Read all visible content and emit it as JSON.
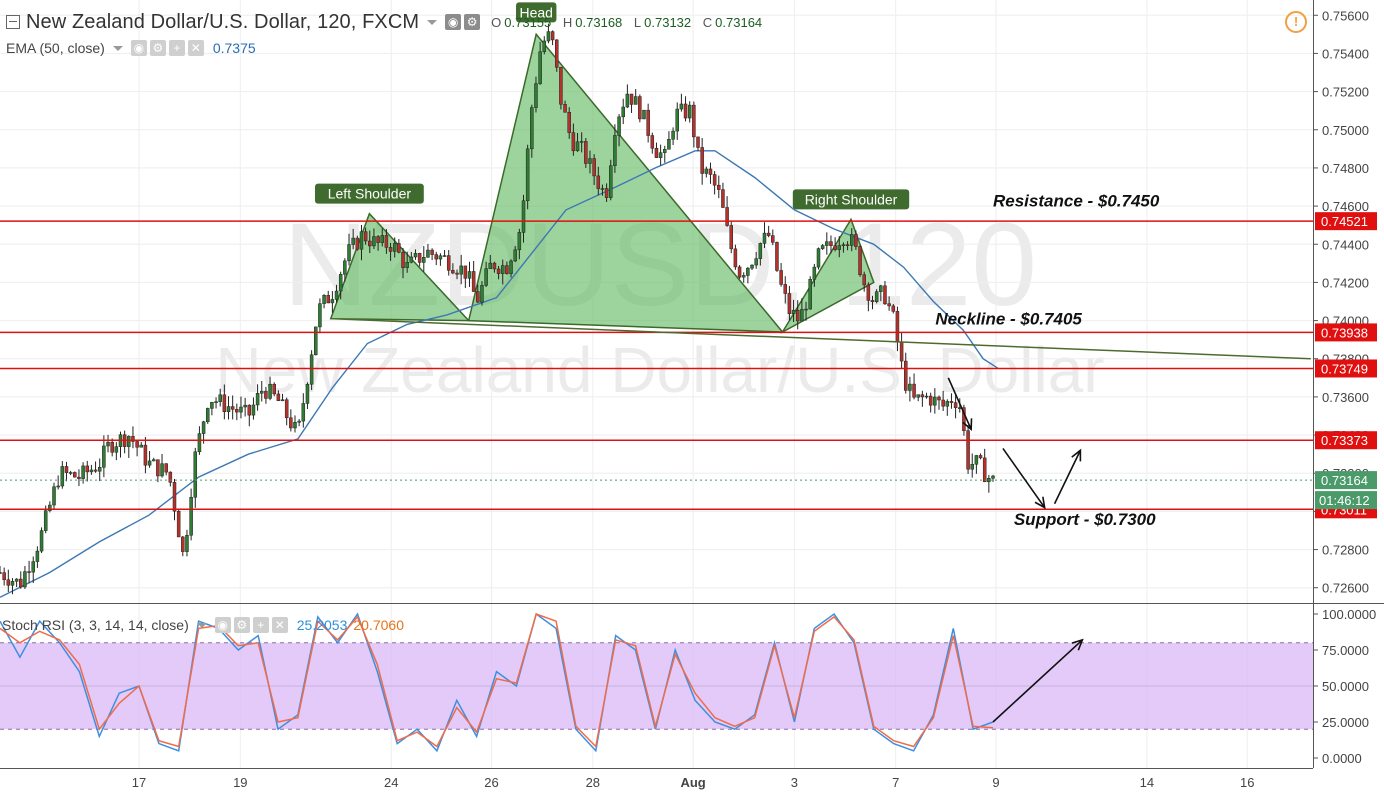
{
  "header": {
    "symbol_title": "New Zealand Dollar/U.S. Dollar, 120, FXCM",
    "ohlc": {
      "o_label": "O",
      "o_value": "0.73155",
      "h_label": "H",
      "h_value": "0.73168",
      "l_label": "L",
      "l_value": "0.73132",
      "c_label": "C",
      "c_value": "0.73164"
    },
    "ema_label": "EMA (50, close)",
    "ema_value": "0.7375",
    "alert_icon": "alert-icon"
  },
  "watermark": {
    "symbol": "NZDUSD, 120",
    "name": "New Zealand Dollar/U.S. Dollar"
  },
  "stoch": {
    "label": "Stoch RSI (3, 3, 14, 14, close)",
    "k_value": "25.2053",
    "d_value": "20.7060"
  },
  "colors": {
    "up_candle": "#2e7d32",
    "down_candle": "#b5322c",
    "ema": "#3c78b4",
    "pattern_fill": "#5cb85c",
    "pattern_stroke": "#3a6a2a",
    "level_line": "#e01010",
    "neckline": "#4d6b2e",
    "stoch_k": "#3d8fe0",
    "stoch_d": "#ef6c4a",
    "stoch_band": "#d9b8f5",
    "last_price": "#4a9a6a"
  },
  "chart_data": [
    {
      "type": "candlestick",
      "ylim": [
        0.7252,
        0.7568
      ],
      "y_ticks": [
        "0.75600",
        "0.75400",
        "0.75200",
        "0.75000",
        "0.74800",
        "0.74600",
        "0.74400",
        "0.74200",
        "0.74000",
        "0.73800",
        "0.73600",
        "0.73400",
        "0.73200",
        "0.73000",
        "0.72800",
        "0.72600"
      ],
      "x_ticks": [
        {
          "label": "17",
          "x": 0.14
        },
        {
          "label": "19",
          "x": 0.242
        },
        {
          "label": "24",
          "x": 0.394
        },
        {
          "label": "26",
          "x": 0.495
        },
        {
          "label": "28",
          "x": 0.597
        },
        {
          "label": "Aug",
          "x": 0.698
        },
        {
          "label": "3",
          "x": 0.8
        },
        {
          "label": "7",
          "x": 0.902
        },
        {
          "label": "9",
          "x": 1.003
        },
        {
          "label": "14",
          "x": 1.155
        },
        {
          "label": "16",
          "x": 1.256
        }
      ],
      "anchors": [
        [
          0.0,
          0.7268
        ],
        [
          0.02,
          0.7262
        ],
        [
          0.04,
          0.7285
        ],
        [
          0.06,
          0.732
        ],
        [
          0.08,
          0.7318
        ],
        [
          0.1,
          0.7325
        ],
        [
          0.11,
          0.7335
        ],
        [
          0.13,
          0.734
        ],
        [
          0.15,
          0.7325
        ],
        [
          0.17,
          0.732
        ],
        [
          0.185,
          0.7275
        ],
        [
          0.195,
          0.7325
        ],
        [
          0.21,
          0.736
        ],
        [
          0.23,
          0.7355
        ],
        [
          0.25,
          0.735
        ],
        [
          0.265,
          0.7365
        ],
        [
          0.28,
          0.7358
        ],
        [
          0.3,
          0.734
        ],
        [
          0.31,
          0.7372
        ],
        [
          0.32,
          0.7405
        ],
        [
          0.335,
          0.7415
        ],
        [
          0.35,
          0.7435
        ],
        [
          0.365,
          0.7445
        ],
        [
          0.38,
          0.744
        ],
        [
          0.395,
          0.744
        ],
        [
          0.41,
          0.7428
        ],
        [
          0.43,
          0.7436
        ],
        [
          0.45,
          0.7432
        ],
        [
          0.47,
          0.7425
        ],
        [
          0.48,
          0.741
        ],
        [
          0.495,
          0.743
        ],
        [
          0.51,
          0.7428
        ],
        [
          0.525,
          0.745
        ],
        [
          0.535,
          0.751
        ],
        [
          0.545,
          0.7545
        ],
        [
          0.555,
          0.755
        ],
        [
          0.565,
          0.7515
        ],
        [
          0.575,
          0.7495
        ],
        [
          0.585,
          0.749
        ],
        [
          0.6,
          0.7475
        ],
        [
          0.61,
          0.7465
        ],
        [
          0.62,
          0.7505
        ],
        [
          0.632,
          0.752
        ],
        [
          0.645,
          0.751
        ],
        [
          0.66,
          0.749
        ],
        [
          0.67,
          0.7485
        ],
        [
          0.68,
          0.7508
        ],
        [
          0.695,
          0.751
        ],
        [
          0.705,
          0.748
        ],
        [
          0.715,
          0.7475
        ],
        [
          0.725,
          0.7465
        ],
        [
          0.735,
          0.744
        ],
        [
          0.745,
          0.7425
        ],
        [
          0.755,
          0.743
        ],
        [
          0.765,
          0.744
        ],
        [
          0.775,
          0.7445
        ],
        [
          0.785,
          0.742
        ],
        [
          0.795,
          0.7405
        ],
        [
          0.805,
          0.74
        ],
        [
          0.815,
          0.7415
        ],
        [
          0.825,
          0.7435
        ],
        [
          0.838,
          0.744
        ],
        [
          0.85,
          0.7445
        ],
        [
          0.86,
          0.744
        ],
        [
          0.87,
          0.742
        ],
        [
          0.88,
          0.741
        ],
        [
          0.89,
          0.7415
        ],
        [
          0.9,
          0.74
        ],
        [
          0.91,
          0.737
        ],
        [
          0.92,
          0.7358
        ],
        [
          0.935,
          0.736
        ],
        [
          0.95,
          0.7355
        ],
        [
          0.96,
          0.736
        ],
        [
          0.967,
          0.7355
        ],
        [
          0.975,
          0.7325
        ],
        [
          0.985,
          0.7325
        ],
        [
          0.995,
          0.7318
        ],
        [
          1.0,
          0.7316
        ]
      ],
      "ema_series": [
        [
          0.0,
          0.7255
        ],
        [
          0.05,
          0.7268
        ],
        [
          0.1,
          0.7284
        ],
        [
          0.15,
          0.7298
        ],
        [
          0.2,
          0.7318
        ],
        [
          0.25,
          0.733
        ],
        [
          0.3,
          0.7338
        ],
        [
          0.335,
          0.7365
        ],
        [
          0.37,
          0.7388
        ],
        [
          0.41,
          0.7398
        ],
        [
          0.45,
          0.7403
        ],
        [
          0.5,
          0.7412
        ],
        [
          0.535,
          0.7435
        ],
        [
          0.57,
          0.7458
        ],
        [
          0.62,
          0.747
        ],
        [
          0.66,
          0.748
        ],
        [
          0.7,
          0.7489
        ],
        [
          0.72,
          0.7489
        ],
        [
          0.76,
          0.7475
        ],
        [
          0.8,
          0.7458
        ],
        [
          0.84,
          0.7448
        ],
        [
          0.88,
          0.744
        ],
        [
          0.91,
          0.7428
        ],
        [
          0.94,
          0.741
        ],
        [
          0.97,
          0.7395
        ],
        [
          0.99,
          0.738
        ],
        [
          1.005,
          0.7375
        ]
      ],
      "horizontal_levels": [
        {
          "price": 0.74521,
          "label": "0.74521"
        },
        {
          "price": 0.73938,
          "label": "0.73938"
        },
        {
          "price": 0.73749,
          "label": "0.73749"
        },
        {
          "price": 0.73373,
          "label": "0.73373"
        },
        {
          "price": 0.73011,
          "label": "0.73011"
        }
      ],
      "last_price": {
        "price": 0.73164,
        "label": "0.73164",
        "countdown": "01:46:12"
      },
      "neckline": [
        [
          0.333,
          0.7401
        ],
        [
          1.32,
          0.738
        ]
      ],
      "pattern_triangles": [
        [
          [
            0.333,
            0.7401
          ],
          [
            0.372,
            0.7456
          ],
          [
            0.472,
            0.74
          ]
        ],
        [
          [
            0.472,
            0.74
          ],
          [
            0.54,
            0.755
          ],
          [
            0.788,
            0.7394
          ]
        ],
        [
          [
            0.788,
            0.7394
          ],
          [
            0.857,
            0.7453
          ],
          [
            0.88,
            0.742
          ]
        ]
      ],
      "annotations": [
        {
          "text": "Left Shoulder",
          "kind": "tag",
          "x": 0.372,
          "price": 0.7466
        },
        {
          "text": "Head",
          "kind": "tag",
          "x": 0.54,
          "price": 0.7561
        },
        {
          "text": "Right Shoulder",
          "kind": "tag",
          "x": 0.857,
          "price": 0.7463
        },
        {
          "text": "Resistance - $0.7450",
          "kind": "note",
          "x": 1.0,
          "price": 0.7463
        },
        {
          "text": "Neckline - $0.7405",
          "kind": "note",
          "x": 0.942,
          "price": 0.7401
        },
        {
          "text": "Support - $0.7300",
          "kind": "note",
          "x": 1.021,
          "price": 0.7296
        }
      ],
      "arrows": [
        {
          "from": [
            0.955,
            0.737
          ],
          "to": [
            0.978,
            0.7343
          ]
        },
        {
          "from": [
            1.01,
            0.7333
          ],
          "to": [
            1.052,
            0.7302
          ]
        },
        {
          "from": [
            1.062,
            0.7304
          ],
          "to": [
            1.088,
            0.7332
          ]
        }
      ]
    },
    {
      "type": "line",
      "name": "Stoch RSI",
      "ylim": [
        0,
        100
      ],
      "y_ticks": [
        "100.0000",
        "75.0000",
        "50.0000",
        "25.0000",
        "0.0000"
      ],
      "band": [
        20,
        80
      ],
      "series": [
        {
          "color_key": "stoch_k",
          "points": [
            [
              0.0,
              95
            ],
            [
              0.02,
              70
            ],
            [
              0.04,
              95
            ],
            [
              0.06,
              80
            ],
            [
              0.08,
              60
            ],
            [
              0.1,
              15
            ],
            [
              0.12,
              45
            ],
            [
              0.14,
              50
            ],
            [
              0.16,
              10
            ],
            [
              0.18,
              5
            ],
            [
              0.2,
              95
            ],
            [
              0.22,
              90
            ],
            [
              0.24,
              75
            ],
            [
              0.26,
              85
            ],
            [
              0.28,
              20
            ],
            [
              0.3,
              30
            ],
            [
              0.32,
              98
            ],
            [
              0.34,
              80
            ],
            [
              0.36,
              100
            ],
            [
              0.38,
              60
            ],
            [
              0.4,
              10
            ],
            [
              0.42,
              20
            ],
            [
              0.44,
              5
            ],
            [
              0.46,
              40
            ],
            [
              0.48,
              15
            ],
            [
              0.5,
              60
            ],
            [
              0.52,
              50
            ],
            [
              0.54,
              100
            ],
            [
              0.56,
              90
            ],
            [
              0.58,
              20
            ],
            [
              0.6,
              5
            ],
            [
              0.62,
              85
            ],
            [
              0.64,
              75
            ],
            [
              0.66,
              20
            ],
            [
              0.68,
              75
            ],
            [
              0.7,
              40
            ],
            [
              0.72,
              25
            ],
            [
              0.74,
              20
            ],
            [
              0.76,
              30
            ],
            [
              0.78,
              80
            ],
            [
              0.8,
              25
            ],
            [
              0.82,
              90
            ],
            [
              0.84,
              100
            ],
            [
              0.86,
              80
            ],
            [
              0.88,
              20
            ],
            [
              0.9,
              10
            ],
            [
              0.92,
              5
            ],
            [
              0.94,
              30
            ],
            [
              0.96,
              90
            ],
            [
              0.98,
              20
            ],
            [
              1.0,
              25
            ]
          ]
        },
        {
          "color_key": "stoch_d",
          "points": [
            [
              0.0,
              90
            ],
            [
              0.02,
              80
            ],
            [
              0.04,
              88
            ],
            [
              0.06,
              82
            ],
            [
              0.08,
              65
            ],
            [
              0.1,
              20
            ],
            [
              0.12,
              38
            ],
            [
              0.14,
              50
            ],
            [
              0.16,
              12
            ],
            [
              0.18,
              8
            ],
            [
              0.2,
              90
            ],
            [
              0.22,
              92
            ],
            [
              0.24,
              78
            ],
            [
              0.26,
              80
            ],
            [
              0.28,
              25
            ],
            [
              0.3,
              28
            ],
            [
              0.32,
              95
            ],
            [
              0.34,
              82
            ],
            [
              0.36,
              98
            ],
            [
              0.38,
              65
            ],
            [
              0.4,
              12
            ],
            [
              0.42,
              18
            ],
            [
              0.44,
              8
            ],
            [
              0.46,
              35
            ],
            [
              0.48,
              18
            ],
            [
              0.5,
              55
            ],
            [
              0.52,
              52
            ],
            [
              0.54,
              100
            ],
            [
              0.56,
              95
            ],
            [
              0.58,
              22
            ],
            [
              0.6,
              8
            ],
            [
              0.62,
              82
            ],
            [
              0.64,
              78
            ],
            [
              0.66,
              22
            ],
            [
              0.68,
              72
            ],
            [
              0.7,
              45
            ],
            [
              0.72,
              28
            ],
            [
              0.74,
              22
            ],
            [
              0.76,
              28
            ],
            [
              0.78,
              78
            ],
            [
              0.8,
              28
            ],
            [
              0.82,
              88
            ],
            [
              0.84,
              98
            ],
            [
              0.86,
              82
            ],
            [
              0.88,
              22
            ],
            [
              0.9,
              12
            ],
            [
              0.92,
              8
            ],
            [
              0.94,
              28
            ],
            [
              0.96,
              85
            ],
            [
              0.98,
              22
            ],
            [
              1.0,
              21
            ]
          ]
        }
      ],
      "arrow": {
        "from": [
          1.0,
          25
        ],
        "to": [
          1.09,
          82
        ]
      }
    }
  ]
}
